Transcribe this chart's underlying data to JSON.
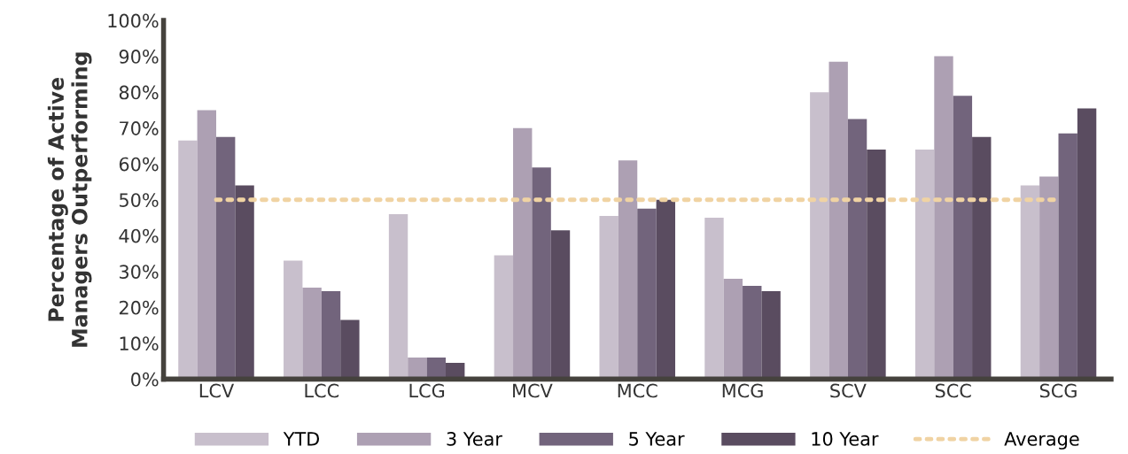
{
  "chart_data": {
    "type": "bar",
    "ylabel": "Percentage of Active\nManagers Outperforming",
    "categories": [
      "LCV",
      "LCC",
      "LCG",
      "MCV",
      "MCC",
      "MCG",
      "SCV",
      "SCC",
      "SCG"
    ],
    "series": [
      {
        "name": "YTD",
        "color": "#c8bfcc",
        "values": [
          66.5,
          33,
          46,
          34.5,
          45.5,
          45,
          80,
          64,
          54
        ]
      },
      {
        "name": "3 Year",
        "color": "#ada0b3",
        "values": [
          75,
          25.5,
          6,
          70,
          61,
          28,
          88.5,
          90,
          56.5
        ]
      },
      {
        "name": "5 Year",
        "color": "#72647c",
        "values": [
          67.5,
          24.5,
          6,
          59,
          47.5,
          26,
          72.5,
          79,
          68.5
        ]
      },
      {
        "name": "10 Year",
        "color": "#5a4c60",
        "values": [
          54,
          16.5,
          4.5,
          41.5,
          50,
          24.5,
          64,
          67.5,
          75.5
        ]
      },
      {
        "name": "Average",
        "color": "#f0d3a3",
        "type": "line",
        "line_style": "dotted",
        "values": [
          50,
          50,
          50,
          50,
          50,
          50,
          50,
          50,
          50
        ]
      }
    ],
    "ylim": [
      0,
      100
    ],
    "yticks": [
      {
        "value": 0,
        "label": "0%"
      },
      {
        "value": 10,
        "label": "10%"
      },
      {
        "value": 20,
        "label": "20%"
      },
      {
        "value": 30,
        "label": "30%"
      },
      {
        "value": 40,
        "label": "40%"
      },
      {
        "value": 50,
        "label": "50%"
      },
      {
        "value": 60,
        "label": "60%"
      },
      {
        "value": 70,
        "label": "70%"
      },
      {
        "value": 80,
        "label": "80%"
      },
      {
        "value": 90,
        "label": "90%"
      },
      {
        "value": 100,
        "label": "100%"
      }
    ],
    "grid": false,
    "legend": "bottom"
  }
}
